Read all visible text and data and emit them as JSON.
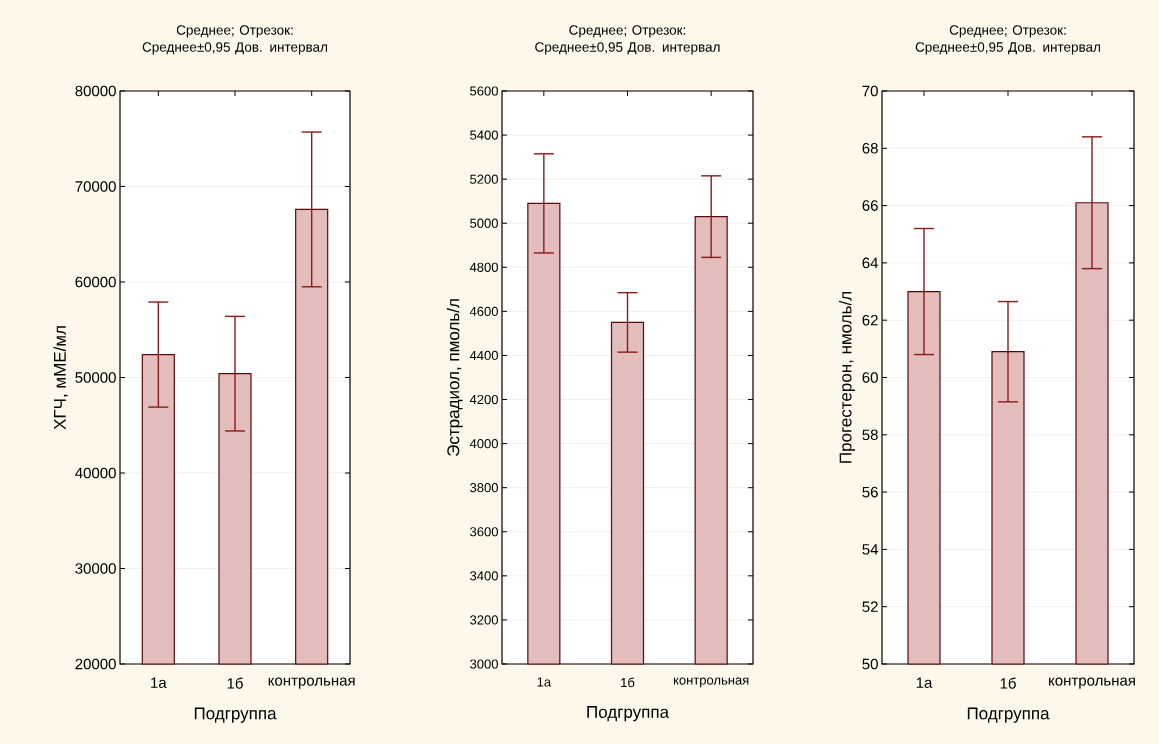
{
  "chart_data": [
    {
      "type": "bar",
      "title": "Среднее; Отрезок: Среднее±0,95 Дов. интервал",
      "xlabel": "Подгруппа",
      "ylabel": "ХГЧ, мМЕ/мл",
      "categories": [
        "1а",
        "1б",
        "контрольная"
      ],
      "values": [
        52400,
        50400,
        67600
      ],
      "errors": [
        5500,
        6000,
        8100
      ],
      "color": "#e3bcbc",
      "ylim": [
        20000,
        80000
      ],
      "yticks": [
        20000,
        30000,
        40000,
        50000,
        60000,
        70000,
        80000
      ],
      "grid": "y"
    },
    {
      "type": "bar",
      "title": "Среднее; Отрезок: Среднее±0,95 Дов. интервал",
      "xlabel": "Подгруппа",
      "ylabel": "Эстрадиол, пмоль/л",
      "categories": [
        "1а",
        "1б",
        "контрольная"
      ],
      "values": [
        5090,
        4550,
        5030
      ],
      "errors": [
        225,
        135,
        185
      ],
      "color": "#e3bcbc",
      "ylim": [
        3000,
        5600
      ],
      "yticks": [
        3000,
        3200,
        3400,
        3600,
        3800,
        4000,
        4200,
        4400,
        4600,
        4800,
        5000,
        5200,
        5400,
        5600
      ],
      "grid": "y"
    },
    {
      "type": "bar",
      "title": "Среднее; Отрезок: Среднее±0,95 Дов. интервал",
      "xlabel": "Подгруппа",
      "ylabel": "Прогестерон, нмоль/л",
      "categories": [
        "1а",
        "1б",
        "контрольная"
      ],
      "values": [
        63.0,
        60.9,
        66.1
      ],
      "errors": [
        2.2,
        1.75,
        2.3
      ],
      "color": "#e3bcbc",
      "ylim": [
        50,
        70
      ],
      "yticks": [
        50,
        52,
        54,
        56,
        58,
        60,
        62,
        64,
        66,
        68,
        70
      ],
      "grid": "y"
    }
  ]
}
